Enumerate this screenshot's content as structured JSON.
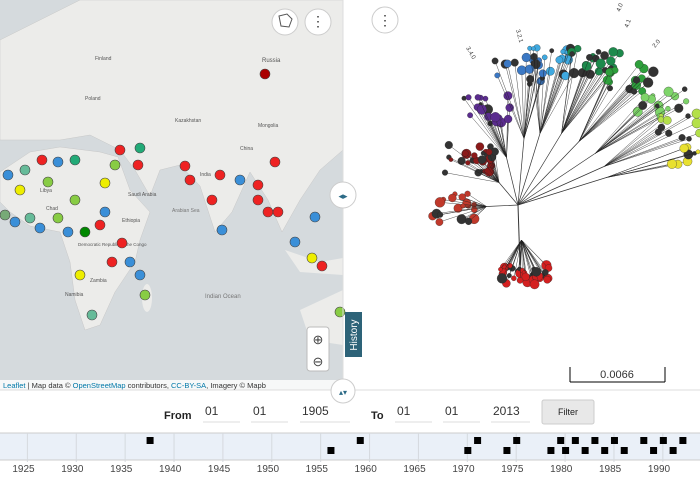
{
  "map": {
    "labels": [
      "Russia",
      "Kazakhstan",
      "Mongolia",
      "Libya",
      "Chad",
      "Saudi Arabia",
      "Arabian Sea",
      "Ethiopia",
      "Democratic Republic of the Congo",
      "Zambia",
      "Namibia",
      "Indian Ocean",
      "Finland",
      "Poland",
      "China",
      "India"
    ],
    "attribution": {
      "prefix": "Leaflet",
      "text": " | Map data © ",
      "osm": "OpenStreetMap",
      "contrib": " contributors, ",
      "license": "CC-BY-SA",
      "imagery": ", Imagery © Mapb"
    }
  },
  "history_tab": "History",
  "tree": {
    "scale": "0.0066",
    "labels": [
      "3.4.0",
      "3.2.1",
      "4.0",
      "2.0",
      "4.1"
    ]
  },
  "filter": {
    "from_label": "From",
    "from": [
      "01",
      "01",
      "1905"
    ],
    "to_label": "To",
    "to": [
      "01",
      "01",
      "2013"
    ],
    "button": "Filter"
  },
  "timeline": {
    "xlim": [
      1922.2,
      1993.8
    ],
    "years": [
      1925,
      1930,
      1935,
      1940,
      1945,
      1950,
      1955,
      1960,
      1965,
      1970,
      1975,
      1980,
      1985,
      1990
    ],
    "events": [
      1937.5,
      1956,
      1959,
      1970,
      1971,
      1974,
      1975,
      1978.5,
      1979.5,
      1980,
      1981,
      1982,
      1983,
      1984,
      1985,
      1986,
      1988,
      1989,
      1990,
      1991,
      1992
    ]
  }
}
